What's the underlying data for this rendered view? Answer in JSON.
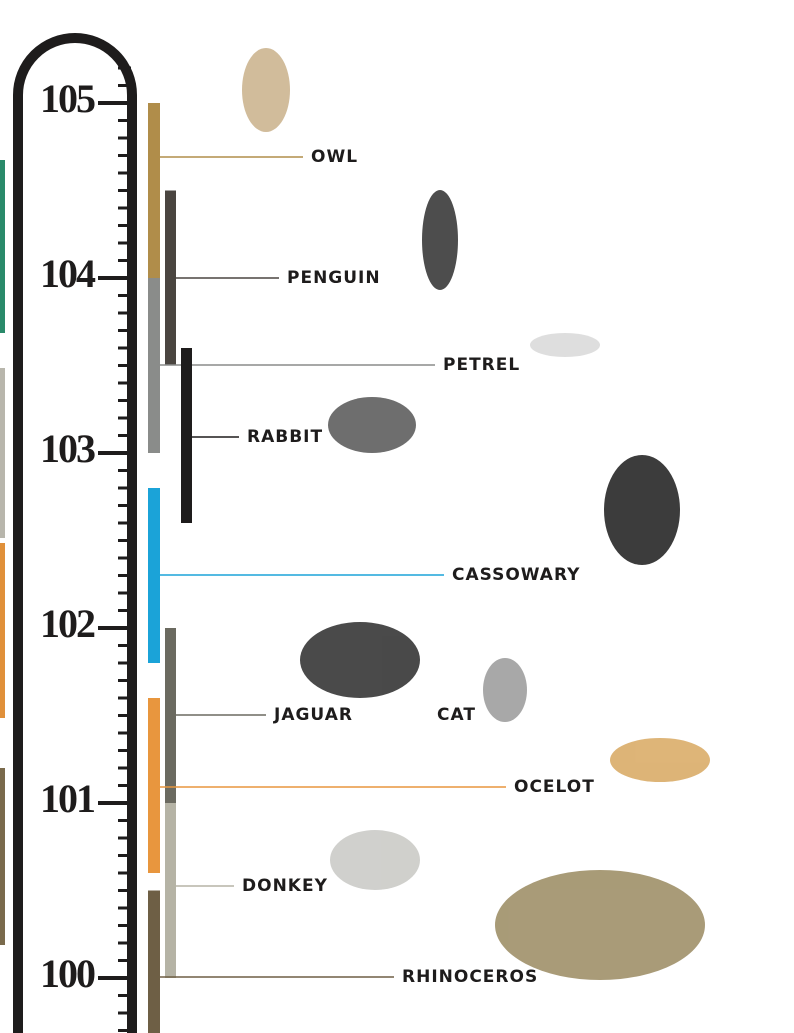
{
  "chart_data": {
    "type": "range",
    "ylim": [
      99.7,
      105.6
    ],
    "yticks": [
      100,
      101,
      102,
      103,
      104,
      105
    ],
    "series": [
      {
        "name": "OWL",
        "color": "#b08d4a",
        "values": [
          104,
          105
        ]
      },
      {
        "name": "PENGUIN",
        "color": "#4a4540",
        "values": [
          103.5,
          104.5
        ]
      },
      {
        "name": "PETREL",
        "color": "#8a8c8a",
        "values": [
          103,
          104
        ]
      },
      {
        "name": "RABBIT",
        "color": "#1e1c1c",
        "values": [
          102.6,
          103.6
        ]
      },
      {
        "name": "CASSOWARY",
        "color": "#1ba3d8",
        "values": [
          101.8,
          102.8
        ]
      },
      {
        "name": "JAGUAR",
        "color": "#6b6a60",
        "values": [
          101,
          102
        ]
      },
      {
        "name": "CAT",
        "color": null,
        "values": null
      },
      {
        "name": "OCELOT",
        "color": "#e8963e",
        "values": [
          100.6,
          101.6
        ]
      },
      {
        "name": "DONKEY",
        "color": "#b5b3a5",
        "values": [
          100,
          101
        ]
      },
      {
        "name": "RHINOCEROS",
        "color": "#6e5f45",
        "values": [
          99.5,
          100.5
        ]
      }
    ]
  }
}
